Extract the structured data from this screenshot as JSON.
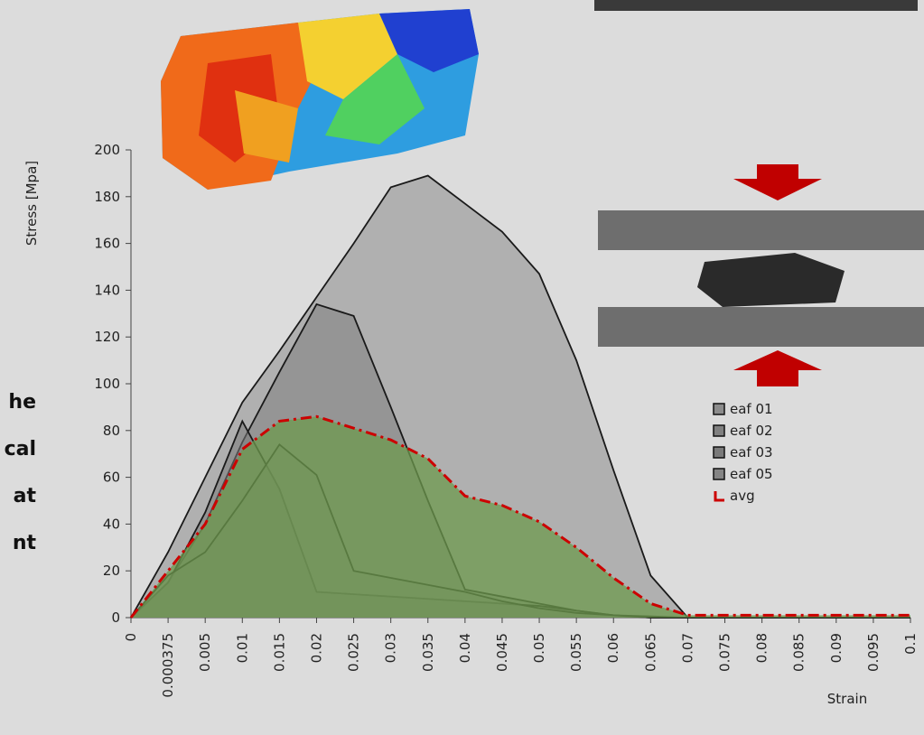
{
  "chart_data": {
    "type": "area",
    "y_label": "Stress [Mpa]",
    "x_label": "Strain",
    "categories": [
      "0",
      "0.000375",
      "0.005",
      "0.01",
      "0.015",
      "0.02",
      "0.025",
      "0.03",
      "0.035",
      "0.04",
      "0.045",
      "0.05",
      "0.055",
      "0.06",
      "0.065",
      "0.07",
      "0.075",
      "0.08",
      "0.085",
      "0.09",
      "0.095",
      "0.1"
    ],
    "ylim": [
      0,
      200
    ],
    "yticks": [
      0,
      20,
      40,
      60,
      80,
      100,
      120,
      140,
      160,
      180,
      200
    ],
    "series": [
      {
        "name": "eaf 01",
        "color": "#8c8c8c",
        "values": [
          0,
          28,
          60,
          92,
          114,
          137,
          160,
          184,
          189,
          177,
          165,
          147,
          110,
          63,
          18,
          0,
          0,
          0,
          0,
          0,
          0,
          0
        ]
      },
      {
        "name": "eaf 02",
        "color": "#808080",
        "values": [
          0,
          15,
          40,
          75,
          105,
          134,
          129,
          90,
          50,
          12,
          9,
          6,
          3,
          1,
          0.5,
          0,
          0,
          0,
          0,
          0,
          0,
          0
        ]
      },
      {
        "name": "eaf 03",
        "color": "#7a7a7a",
        "values": [
          0,
          15,
          45,
          84,
          55,
          11,
          10,
          9,
          8,
          7,
          6,
          5,
          3,
          1,
          0,
          0,
          0,
          0,
          0,
          0,
          0,
          0
        ]
      },
      {
        "name": "eaf 05",
        "color": "#858585",
        "values": [
          0,
          18,
          28,
          50,
          74,
          61,
          20,
          17,
          14,
          11,
          7,
          4,
          2,
          1,
          0,
          0,
          0,
          0,
          0,
          0,
          0,
          0
        ]
      },
      {
        "name": "avg",
        "color": "#cc0000",
        "fill": "#6e9a4e",
        "values": [
          0,
          20,
          40,
          72,
          84,
          86,
          81,
          76,
          68,
          52,
          48,
          41,
          30,
          17,
          6,
          1,
          1,
          1,
          1,
          1,
          1,
          1
        ]
      }
    ]
  },
  "caption_fragments": [
    "he",
    "cal",
    "at",
    "nt"
  ]
}
